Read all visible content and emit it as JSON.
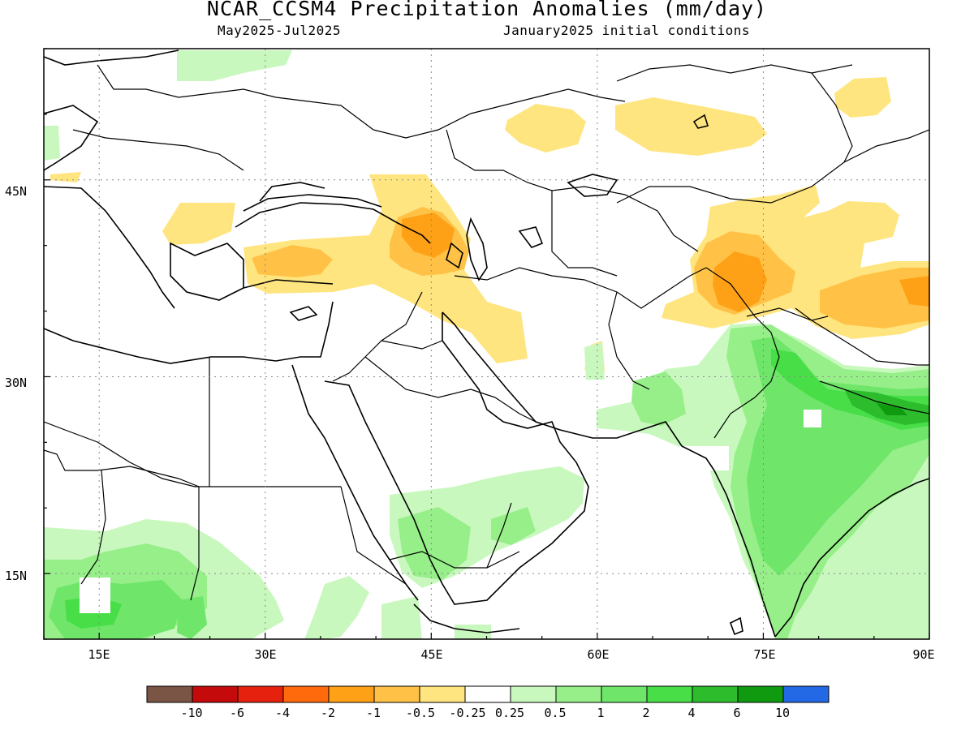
{
  "title": "NCAR_CCSM4 Precipitation Anomalies (mm/day)",
  "subtitle_left": "May2025-Jul2025",
  "subtitle_right": "January2025 initial conditions",
  "lat_labels": [
    "45N",
    "30N",
    "15N"
  ],
  "lon_labels": [
    "15E",
    "30E",
    "45E",
    "60E",
    "75E",
    "90E"
  ],
  "colorbar": {
    "colors": [
      "#7a5546",
      "#c40a0a",
      "#e6220f",
      "#ff6a0d",
      "#ffa117",
      "#ffc247",
      "#ffe57f",
      "#ffffff",
      "#c9f8bf",
      "#96ef88",
      "#6fe66a",
      "#48de48",
      "#2cbc2c",
      "#0f9a0f",
      "#2369e6"
    ],
    "labels": [
      "-10",
      "-6",
      "-4",
      "-2",
      "-1",
      "-0.5",
      "-0.25",
      "0.25",
      "0.5",
      "1",
      "2",
      "4",
      "6",
      "10"
    ]
  },
  "map": {
    "lon_range": [
      10,
      90
    ],
    "lat_range": [
      10,
      55
    ],
    "grid_lons": [
      15,
      30,
      45,
      60,
      75
    ],
    "grid_lats": [
      15,
      30,
      45
    ]
  }
}
